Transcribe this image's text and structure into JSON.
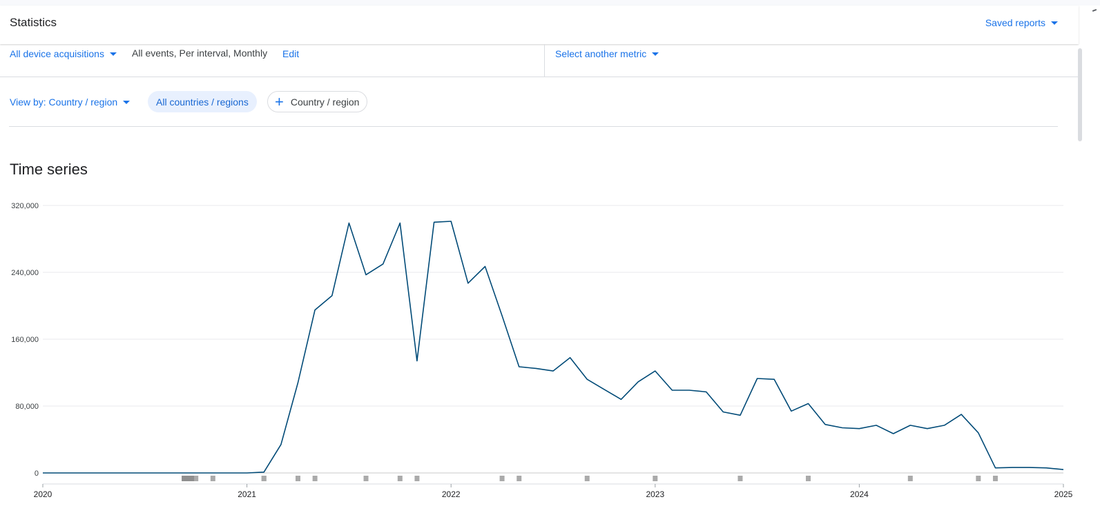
{
  "header": {
    "title": "Statistics",
    "saved_reports_label": "Saved reports"
  },
  "metric_bar": {
    "acquisition_label": "All device acquisitions",
    "description": "All events, Per interval, Monthly",
    "edit_label": "Edit",
    "other_metric_label": "Select another metric"
  },
  "view_bar": {
    "view_by_label": "View by: Country / region",
    "chip_active_label": "All countries / regions",
    "chip_add_label": "Country / region"
  },
  "section": {
    "title": "Time series"
  },
  "colors": {
    "accent": "#1a73e8",
    "series_line": "#004a77",
    "gridline": "#e8eaed",
    "event_marker": "#aaaaaa"
  },
  "chart_data": {
    "type": "line",
    "title": "",
    "xlabel": "",
    "ylabel": "",
    "x_range": [
      "2020-01",
      "2025-01"
    ],
    "x_ticks": [
      "2020",
      "2021",
      "2022",
      "2023",
      "2024",
      "2025"
    ],
    "ylim": [
      0,
      320000
    ],
    "y_ticks": [
      "0",
      "80,000",
      "160,000",
      "240,000",
      "320,000"
    ],
    "y_tick_values": [
      0,
      80000,
      160000,
      240000,
      320000
    ],
    "grid": true,
    "series": [
      {
        "x": [
          "2020-01",
          "2020-02",
          "2020-03",
          "2020-04",
          "2020-05",
          "2020-06",
          "2020-07",
          "2020-08",
          "2020-09",
          "2020-10",
          "2020-11",
          "2020-12",
          "2021-01",
          "2021-02",
          "2021-03",
          "2021-04",
          "2021-05",
          "2021-06",
          "2021-07",
          "2021-08",
          "2021-09",
          "2021-10",
          "2021-11",
          "2021-12",
          "2022-01",
          "2022-02",
          "2022-03",
          "2022-04",
          "2022-05",
          "2022-06",
          "2022-07",
          "2022-08",
          "2022-09",
          "2022-10",
          "2022-11",
          "2022-12",
          "2023-01",
          "2023-02",
          "2023-03",
          "2023-04",
          "2023-05",
          "2023-06",
          "2023-07",
          "2023-08",
          "2023-09",
          "2023-10",
          "2023-11",
          "2023-12",
          "2024-01",
          "2024-02",
          "2024-03",
          "2024-04",
          "2024-05",
          "2024-06",
          "2024-07",
          "2024-08",
          "2024-09",
          "2024-10",
          "2024-11",
          "2024-12",
          "2025-01"
        ],
        "values": [
          0,
          0,
          0,
          0,
          0,
          0,
          0,
          0,
          0,
          0,
          0,
          0,
          0,
          1000,
          34000,
          108000,
          195000,
          212000,
          299000,
          237000,
          250000,
          299000,
          134000,
          300000,
          301000,
          227000,
          247000,
          188000,
          127000,
          125000,
          122000,
          138000,
          112000,
          100000,
          88000,
          109000,
          122000,
          99000,
          99000,
          97000,
          73000,
          69000,
          113000,
          112000,
          74000,
          83000,
          58000,
          54000,
          53000,
          57000,
          47000,
          57000,
          53000,
          57000,
          70000,
          48000,
          6000,
          6500,
          6500,
          6000,
          4000
        ]
      }
    ],
    "event_markers": [
      "2020-10",
      "2020-11",
      "2021-02",
      "2021-02",
      "2021-04",
      "2021-05",
      "2021-08",
      "2021-10",
      "2021-11",
      "2022-04",
      "2022-05",
      "2022-09",
      "2023-01",
      "2023-06",
      "2023-10",
      "2024-04",
      "2024-08",
      "2024-09"
    ]
  }
}
